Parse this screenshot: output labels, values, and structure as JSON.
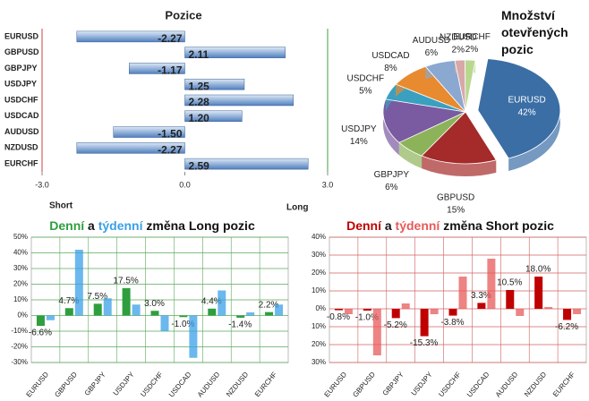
{
  "chart_data": [
    {
      "type": "hbar",
      "title": "Pozice",
      "categories": [
        "EURUSD",
        "GBPUSD",
        "GBPJPY",
        "USDJPY",
        "USDCHF",
        "USDCAD",
        "AUDUSD",
        "NZDUSD",
        "EURCHF"
      ],
      "values": [
        -2.27,
        2.11,
        -1.17,
        1.25,
        2.28,
        1.2,
        -1.5,
        -2.27,
        2.59
      ],
      "value_labels": [
        "-2.27",
        "2.11",
        "-1.17",
        "1.25",
        "2.28",
        "1.20",
        "-1.50",
        "-2.27",
        "2.59"
      ],
      "color": "#4f7fbf",
      "xlim": [
        -3,
        3
      ],
      "xticks": [
        {
          "value": -3,
          "label": "-3.0"
        },
        {
          "value": 0,
          "label": "0.0"
        },
        {
          "value": 3,
          "label": "3.0"
        }
      ],
      "x_left_label": "Short",
      "x_right_label": "Long"
    },
    {
      "type": "pie",
      "title": "Množství otevřených pozic",
      "categories": [
        "EURUSD",
        "GBPUSD",
        "GBPJPY",
        "USDJPY",
        "USDCHF",
        "USDCAD",
        "AUDUSD",
        "NZDUSD",
        "EURCHF"
      ],
      "values": [
        42,
        15,
        6,
        14,
        5,
        8,
        6,
        2,
        2
      ],
      "value_labels": [
        "42%",
        "15%",
        "6%",
        "14%",
        "5%",
        "8%",
        "6%",
        "2%",
        "2%"
      ],
      "colors": [
        "#3a6ea5",
        "#a52a2a",
        "#8db35a",
        "#7a5aa0",
        "#3aa0c0",
        "#e88a30",
        "#8aa8d0",
        "#d8a8a8",
        "#b8d890"
      ]
    },
    {
      "type": "bar",
      "title_connector": "a",
      "title_rest": "změna Long pozic",
      "categories": [
        "EURUSD",
        "GBPUSD",
        "GBPJPY",
        "USDJPY",
        "USDCHF",
        "USDCAD",
        "AUDUSD",
        "NZDUSD",
        "EURCHF"
      ],
      "series": [
        {
          "name": "Denní",
          "color": "#2e9e3e",
          "values": [
            -6.6,
            4.7,
            7.5,
            17.5,
            3.0,
            -1.0,
            4.4,
            -1.4,
            2.2
          ],
          "value_labels": [
            "-6.6%",
            "4.7%",
            "7.5%",
            "17.5%",
            "3.0%",
            "-1.0%",
            "4.4%",
            "-1.4%",
            "2.2%"
          ]
        },
        {
          "name": "týdenní",
          "color": "#3aa0e8",
          "values": [
            -3,
            42,
            11,
            7,
            -10,
            -27,
            16,
            2,
            7
          ]
        }
      ],
      "ylim": [
        -30,
        50
      ],
      "yticks": [
        {
          "value": -30,
          "label": "-30%"
        },
        {
          "value": -20,
          "label": "-20%"
        },
        {
          "value": -10,
          "label": "-10%"
        },
        {
          "value": 0,
          "label": "0%"
        },
        {
          "value": 10,
          "label": "10%"
        },
        {
          "value": 20,
          "label": "20%"
        },
        {
          "value": 30,
          "label": "30%"
        },
        {
          "value": 40,
          "label": "40%"
        },
        {
          "value": 50,
          "label": "50%"
        }
      ],
      "grid_color": "#5aaa5a"
    },
    {
      "type": "bar",
      "title_connector": "a",
      "title_rest": "změna Short pozic",
      "categories": [
        "EURUSD",
        "GBPUSD",
        "GBPJPY",
        "USDJPY",
        "USDCHF",
        "USDCAD",
        "AUDUSD",
        "NZDUSD",
        "EURCHF"
      ],
      "series": [
        {
          "name": "Denní",
          "color": "#c00000",
          "values": [
            -0.8,
            -1.0,
            -5.2,
            -15.3,
            -3.8,
            3.3,
            10.5,
            18.0,
            -6.2
          ],
          "value_labels": [
            "-0.8%",
            "-1.0%",
            "-5.2%",
            "-15.3%",
            "-3.8%",
            "3.3%",
            "10.5%",
            "18.0%",
            "-6.2%"
          ]
        },
        {
          "name": "týdenní",
          "color": "#e85a5a",
          "values": [
            -3,
            -26,
            3,
            -3,
            18,
            28,
            -4,
            1,
            -3
          ]
        }
      ],
      "ylim": [
        -30,
        40
      ],
      "yticks": [
        {
          "value": -30,
          "label": "30%"
        },
        {
          "value": -20,
          "label": "20%"
        },
        {
          "value": -10,
          "label": "10%"
        },
        {
          "value": 0,
          "label": "0%"
        },
        {
          "value": 10,
          "label": "10%"
        },
        {
          "value": 20,
          "label": "20%"
        },
        {
          "value": 30,
          "label": "30%"
        },
        {
          "value": 40,
          "label": "40%"
        }
      ],
      "grid_color": "#d06060"
    }
  ]
}
